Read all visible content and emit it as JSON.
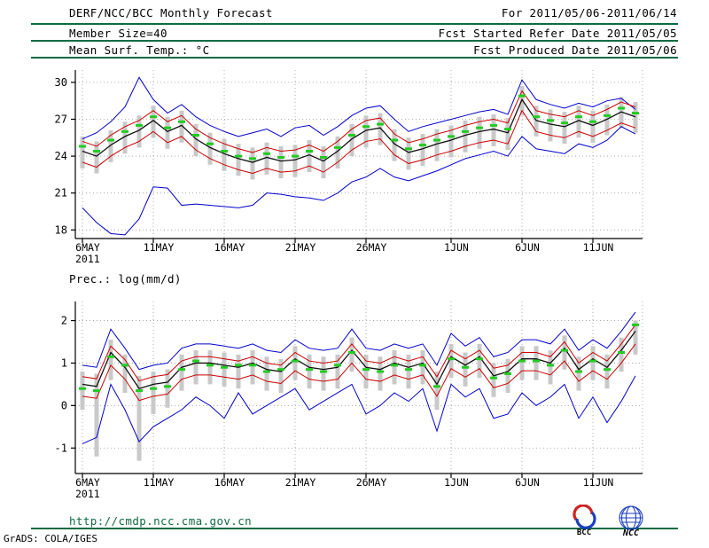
{
  "header": {
    "for_range": "For 2011/05/06-2011/06/14",
    "fcst_refer": "Fcst Started Refer Date 2011/05/05",
    "fcst_produced": "Fcst Produced Date 2011/05/06",
    "title": "DERF/NCC/BCC Monthly Forecast",
    "member_size": "Member Size=40"
  },
  "footer": {
    "url": "http://cmdp.ncc.cma.gov.cn",
    "credit": "GrADS: COLA/IGES",
    "logos": [
      {
        "name": "bcc-logo",
        "label": "BCC"
      },
      {
        "name": "ncc-logo",
        "label": "NCC"
      }
    ]
  },
  "colors": {
    "blue": "#0000cc",
    "red": "#cc0000",
    "black": "#101010",
    "green": "#22cc22",
    "bar": "#c9c9c9",
    "grid": "#9a9a9a",
    "rule": "#0e6b43",
    "url_text": "#0e6b43",
    "logo_blue": "#1a3fbf",
    "logo_red": "#cc2222"
  },
  "chart_data": [
    {
      "type": "line",
      "title": "Mean Surf. Temp.: °C",
      "ylabel": "°C",
      "xlabel": "",
      "n": 40,
      "x": [
        "6MAY",
        "7MAY",
        "8MAY",
        "9MAY",
        "10MAY",
        "11MAY",
        "12MAY",
        "13MAY",
        "14MAY",
        "15MAY",
        "16MAY",
        "17MAY",
        "18MAY",
        "19MAY",
        "20MAY",
        "21MAY",
        "22MAY",
        "23MAY",
        "24MAY",
        "25MAY",
        "26MAY",
        "27MAY",
        "28MAY",
        "29MAY",
        "30MAY",
        "31MAY",
        "1JUN",
        "2JUN",
        "3JUN",
        "4JUN",
        "5JUN",
        "6JUN",
        "7JUN",
        "8JUN",
        "9JUN",
        "10JUN",
        "11JUN",
        "12JUN",
        "13JUN",
        "14JUN"
      ],
      "x_tick_labels": [
        "6MAY",
        "11MAY",
        "16MAY",
        "21MAY",
        "26MAY",
        "1JUN",
        "6JUN",
        "11JUN"
      ],
      "x_tick_index": [
        1,
        6,
        11,
        16,
        21,
        27,
        32,
        37
      ],
      "x_sub_label": "2011",
      "ylim": [
        17.3,
        31.0
      ],
      "yticks": [
        18,
        21,
        24,
        27,
        30
      ],
      "grid": true,
      "legend": "none",
      "bars": {
        "name": "ensemble-spread-bar",
        "hi": [
          25.6,
          25.2,
          26.1,
          26.8,
          27.3,
          28.1,
          27.2,
          27.7,
          26.6,
          25.9,
          25.4,
          25.0,
          24.7,
          25.1,
          24.8,
          24.9,
          25.3,
          24.8,
          25.6,
          26.6,
          27.3,
          27.5,
          26.2,
          25.5,
          25.8,
          26.2,
          26.5,
          26.9,
          27.2,
          27.4,
          27.1,
          29.7,
          28.1,
          27.8,
          27.6,
          28.1,
          27.7,
          28.2,
          28.8,
          28.4
        ],
        "lo": [
          23.0,
          22.6,
          23.5,
          24.2,
          24.7,
          25.5,
          24.6,
          25.1,
          24.0,
          23.3,
          22.8,
          22.4,
          22.1,
          22.5,
          22.2,
          22.3,
          22.7,
          22.2,
          23.0,
          24.0,
          24.7,
          24.9,
          23.6,
          22.9,
          23.2,
          23.6,
          23.9,
          24.3,
          24.6,
          24.8,
          24.5,
          27.3,
          25.6,
          25.2,
          25.0,
          25.5,
          25.1,
          25.7,
          26.3,
          25.9
        ]
      },
      "series": [
        {
          "name": "ensemble-max",
          "color": "blue",
          "style": "line",
          "values": [
            25.4,
            25.9,
            26.8,
            28.0,
            30.4,
            28.6,
            27.5,
            28.2,
            27.2,
            26.5,
            26.0,
            25.6,
            25.9,
            26.2,
            25.6,
            26.3,
            26.5,
            25.7,
            26.4,
            27.3,
            27.9,
            28.1,
            27.0,
            26.0,
            26.4,
            26.7,
            27.0,
            27.3,
            27.6,
            27.8,
            27.4,
            30.2,
            28.6,
            28.2,
            27.9,
            28.3,
            28.0,
            28.5,
            28.7,
            27.8
          ]
        },
        {
          "name": "ensemble-min",
          "color": "blue",
          "style": "line",
          "values": [
            19.8,
            18.6,
            17.7,
            17.6,
            18.9,
            21.5,
            21.4,
            20.0,
            20.1,
            20.0,
            19.9,
            19.8,
            20.0,
            21.0,
            20.9,
            20.7,
            20.6,
            20.4,
            21.0,
            21.9,
            22.3,
            23.0,
            22.3,
            22.0,
            22.4,
            22.8,
            23.3,
            23.8,
            24.1,
            24.4,
            24.0,
            25.6,
            24.6,
            24.4,
            24.2,
            25.0,
            24.7,
            25.3,
            26.4,
            25.8
          ]
        },
        {
          "name": "spread-upper",
          "color": "red",
          "style": "line",
          "values": [
            25.2,
            24.8,
            25.7,
            26.4,
            26.9,
            27.7,
            26.8,
            27.3,
            26.2,
            25.5,
            25.0,
            24.6,
            24.3,
            24.7,
            24.4,
            24.5,
            24.9,
            24.4,
            25.2,
            26.2,
            26.9,
            27.1,
            25.8,
            25.1,
            25.4,
            25.8,
            26.1,
            26.5,
            26.8,
            27.0,
            26.7,
            29.3,
            27.7,
            27.4,
            27.2,
            27.7,
            27.3,
            27.8,
            28.4,
            28.0
          ]
        },
        {
          "name": "spread-lower",
          "color": "red",
          "style": "line",
          "values": [
            23.5,
            23.1,
            24.0,
            24.7,
            25.2,
            26.0,
            25.1,
            25.6,
            24.5,
            23.8,
            23.3,
            22.9,
            22.6,
            23.0,
            22.7,
            22.8,
            23.2,
            22.7,
            23.5,
            24.5,
            25.2,
            25.4,
            24.1,
            23.4,
            23.7,
            24.1,
            24.4,
            24.8,
            25.1,
            25.3,
            25.0,
            27.7,
            26.0,
            25.7,
            25.5,
            26.0,
            25.6,
            26.1,
            26.7,
            26.3
          ]
        },
        {
          "name": "ensemble-mean",
          "color": "black",
          "style": "line",
          "values": [
            24.4,
            24.0,
            24.9,
            25.6,
            26.1,
            26.9,
            26.0,
            26.5,
            25.4,
            24.7,
            24.2,
            23.8,
            23.5,
            23.9,
            23.6,
            23.7,
            24.1,
            23.6,
            24.4,
            25.4,
            26.1,
            26.3,
            25.0,
            24.3,
            24.6,
            25.0,
            25.3,
            25.7,
            26.0,
            26.2,
            25.9,
            28.6,
            26.9,
            26.6,
            26.4,
            26.9,
            26.5,
            27.0,
            27.6,
            27.2
          ]
        },
        {
          "name": "daily-green-marker",
          "color": "green",
          "style": "dash",
          "values": [
            24.8,
            24.4,
            25.3,
            26.0,
            26.5,
            27.2,
            26.3,
            26.8,
            25.7,
            25.0,
            24.4,
            24.0,
            23.8,
            24.2,
            23.9,
            24.0,
            24.4,
            23.9,
            24.7,
            25.7,
            26.4,
            26.6,
            25.3,
            24.6,
            24.9,
            25.3,
            25.6,
            26.0,
            26.3,
            26.5,
            26.2,
            28.9,
            27.2,
            26.9,
            26.7,
            27.2,
            26.8,
            27.3,
            27.9,
            27.5
          ]
        }
      ]
    },
    {
      "type": "line",
      "title": "Prec.: log(mm/d)",
      "ylabel": "log(mm/d)",
      "xlabel": "",
      "n": 40,
      "x": [
        "6MAY",
        "7MAY",
        "8MAY",
        "9MAY",
        "10MAY",
        "11MAY",
        "12MAY",
        "13MAY",
        "14MAY",
        "15MAY",
        "16MAY",
        "17MAY",
        "18MAY",
        "19MAY",
        "20MAY",
        "21MAY",
        "22MAY",
        "23MAY",
        "24MAY",
        "25MAY",
        "26MAY",
        "27MAY",
        "28MAY",
        "29MAY",
        "30MAY",
        "31MAY",
        "1JUN",
        "2JUN",
        "3JUN",
        "4JUN",
        "5JUN",
        "6JUN",
        "7JUN",
        "8JUN",
        "9JUN",
        "10JUN",
        "11JUN",
        "12JUN",
        "13JUN",
        "14JUN"
      ],
      "x_tick_labels": [
        "6MAY",
        "11MAY",
        "16MAY",
        "21MAY",
        "26MAY",
        "1JUN",
        "6JUN",
        "11JUN"
      ],
      "x_tick_index": [
        1,
        6,
        11,
        16,
        21,
        27,
        32,
        37
      ],
      "x_sub_label": "2011",
      "ylim": [
        -1.6,
        2.45
      ],
      "yticks": [
        -1,
        0,
        1,
        2
      ],
      "grid": true,
      "legend": "none",
      "bars": {
        "name": "ensemble-spread-bar",
        "hi": [
          0.8,
          0.75,
          1.55,
          1.2,
          0.7,
          0.8,
          0.85,
          1.2,
          1.3,
          1.3,
          1.25,
          1.2,
          1.3,
          1.15,
          1.1,
          1.4,
          1.2,
          1.15,
          1.2,
          1.6,
          1.2,
          1.15,
          1.3,
          1.2,
          1.3,
          0.8,
          1.45,
          1.25,
          1.45,
          1.0,
          1.1,
          1.4,
          1.4,
          1.3,
          1.65,
          1.15,
          1.4,
          1.2,
          1.6,
          2.0
        ],
        "lo": [
          -0.1,
          -1.2,
          0.6,
          0.3,
          -1.3,
          -0.2,
          -0.05,
          0.35,
          0.5,
          0.5,
          0.45,
          0.4,
          0.5,
          0.35,
          0.3,
          0.6,
          0.4,
          0.35,
          0.4,
          0.8,
          0.4,
          0.35,
          0.5,
          0.4,
          0.5,
          -0.1,
          0.65,
          0.45,
          0.65,
          0.2,
          0.3,
          0.6,
          0.6,
          0.5,
          0.85,
          0.35,
          0.6,
          0.4,
          0.8,
          1.2
        ]
      },
      "series": [
        {
          "name": "ensemble-max",
          "color": "blue",
          "style": "line",
          "values": [
            0.95,
            0.9,
            1.8,
            1.35,
            0.85,
            0.95,
            1.0,
            1.35,
            1.45,
            1.45,
            1.4,
            1.35,
            1.45,
            1.3,
            1.25,
            1.55,
            1.35,
            1.3,
            1.35,
            1.8,
            1.35,
            1.3,
            1.45,
            1.35,
            1.45,
            0.95,
            1.7,
            1.4,
            1.6,
            1.15,
            1.25,
            1.55,
            1.55,
            1.45,
            1.8,
            1.3,
            1.55,
            1.35,
            1.75,
            2.2
          ]
        },
        {
          "name": "ensemble-min",
          "color": "blue",
          "style": "line",
          "values": [
            -0.9,
            -0.75,
            0.5,
            -0.1,
            -0.85,
            -0.5,
            -0.3,
            -0.1,
            0.2,
            0.0,
            -0.3,
            0.3,
            -0.2,
            0.0,
            0.2,
            0.4,
            -0.1,
            0.1,
            0.3,
            0.5,
            -0.2,
            0.0,
            0.3,
            0.1,
            0.4,
            -0.6,
            0.5,
            0.2,
            0.4,
            -0.3,
            -0.2,
            0.3,
            0.0,
            0.2,
            0.5,
            -0.3,
            0.2,
            -0.4,
            0.1,
            0.7
          ]
        },
        {
          "name": "spread-upper",
          "color": "red",
          "style": "line",
          "values": [
            0.68,
            0.63,
            1.4,
            1.08,
            0.58,
            0.68,
            0.73,
            1.05,
            1.15,
            1.15,
            1.1,
            1.05,
            1.15,
            1.0,
            0.95,
            1.25,
            1.05,
            1.0,
            1.05,
            1.45,
            1.05,
            1.0,
            1.15,
            1.05,
            1.15,
            0.68,
            1.3,
            1.1,
            1.3,
            0.88,
            0.95,
            1.25,
            1.25,
            1.15,
            1.5,
            1.0,
            1.25,
            1.05,
            1.45,
            1.9
          ]
        },
        {
          "name": "spread-lower",
          "color": "red",
          "style": "line",
          "values": [
            0.22,
            0.17,
            0.95,
            0.62,
            0.12,
            0.22,
            0.27,
            0.62,
            0.72,
            0.72,
            0.67,
            0.62,
            0.72,
            0.57,
            0.52,
            0.82,
            0.62,
            0.57,
            0.62,
            1.0,
            0.62,
            0.57,
            0.72,
            0.62,
            0.72,
            0.22,
            0.87,
            0.67,
            0.87,
            0.42,
            0.52,
            0.82,
            0.82,
            0.72,
            1.05,
            0.57,
            0.82,
            0.62,
            1.0,
            1.45
          ]
        },
        {
          "name": "ensemble-mean",
          "color": "black",
          "style": "line",
          "values": [
            0.5,
            0.45,
            1.25,
            0.9,
            0.4,
            0.5,
            0.55,
            0.9,
            1.0,
            1.0,
            0.95,
            0.9,
            1.0,
            0.85,
            0.8,
            1.1,
            0.9,
            0.85,
            0.9,
            1.3,
            0.9,
            0.85,
            1.0,
            0.9,
            1.0,
            0.5,
            1.15,
            0.95,
            1.15,
            0.7,
            0.8,
            1.1,
            1.1,
            1.0,
            1.35,
            0.85,
            1.1,
            0.9,
            1.3,
            1.75
          ]
        },
        {
          "name": "daily-green-marker",
          "color": "green",
          "style": "dash",
          "values": [
            0.4,
            0.35,
            1.15,
            0.95,
            0.35,
            0.4,
            0.45,
            0.85,
            1.05,
            0.95,
            0.9,
            0.95,
            0.95,
            0.8,
            0.85,
            1.05,
            0.85,
            0.8,
            0.95,
            1.25,
            0.85,
            0.8,
            0.95,
            0.85,
            0.95,
            0.45,
            1.1,
            0.9,
            1.1,
            0.65,
            0.75,
            1.05,
            1.05,
            0.95,
            1.3,
            0.8,
            1.05,
            0.85,
            1.25,
            1.9
          ]
        }
      ]
    }
  ]
}
